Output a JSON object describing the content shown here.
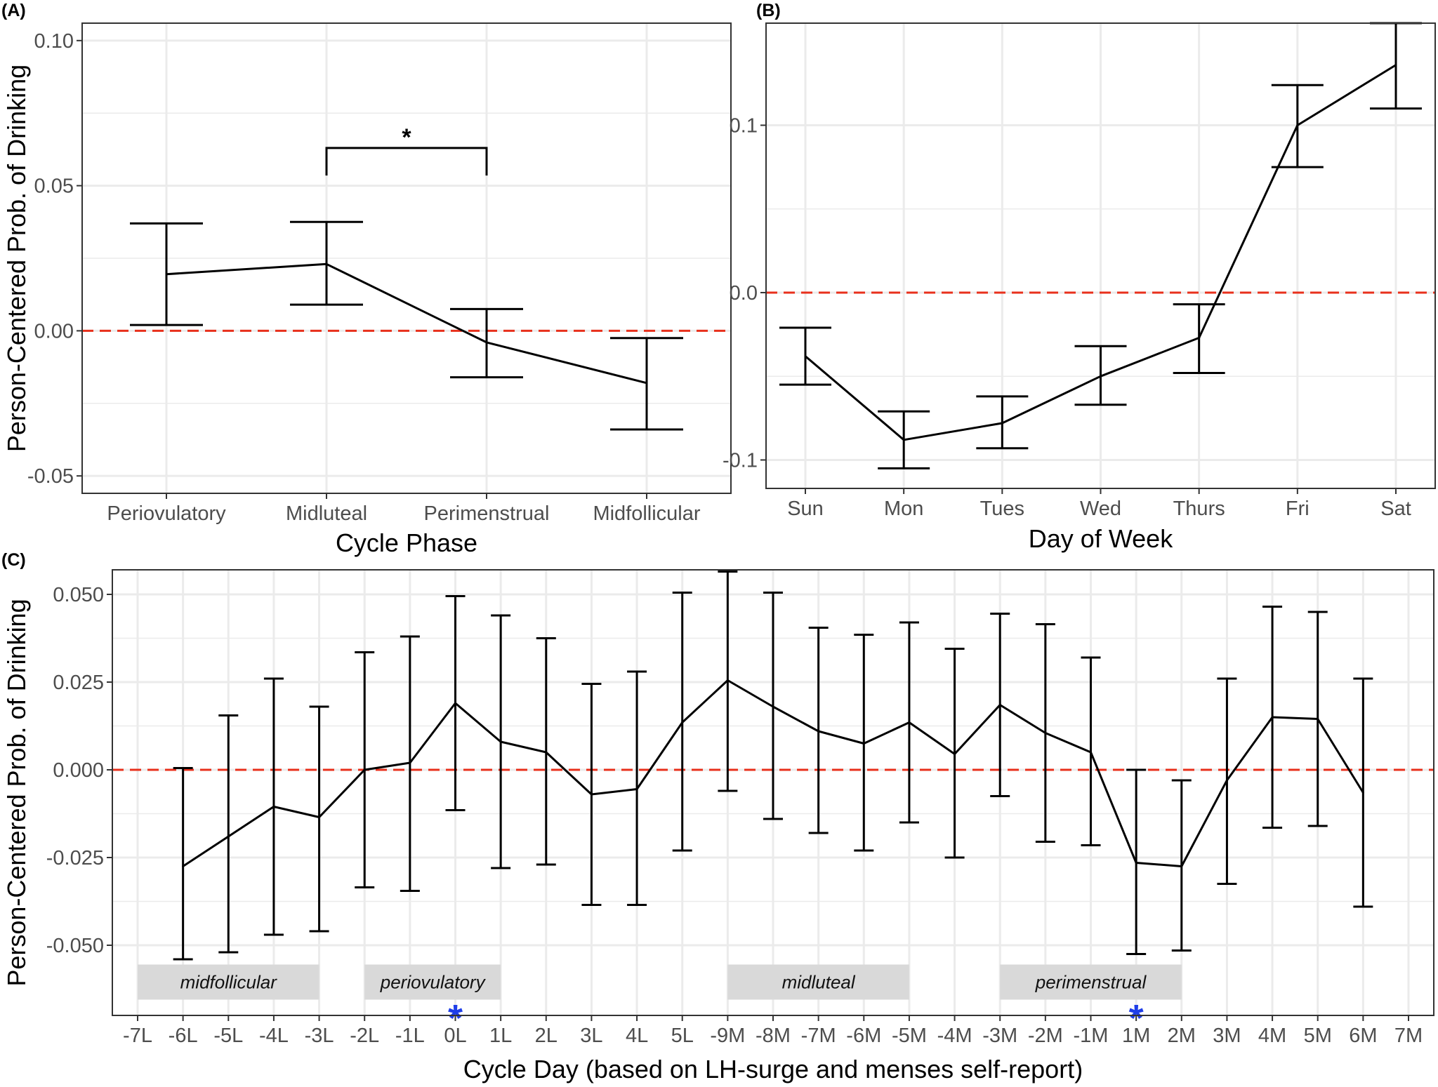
{
  "figure": {
    "reference_line_color": "#e8301c",
    "line_color": "#000000",
    "grid_color": "#ebebeb",
    "band_color": "#d9d9d9",
    "marker_color": "#1f3ee8"
  },
  "chart_data": [
    {
      "id": "A",
      "panel_label": "(A)",
      "type": "line",
      "error_bars": true,
      "xlabel": "Cycle Phase",
      "ylabel": "Person-Centered Prob. of Drinking",
      "ylim": [
        -0.056,
        0.106
      ],
      "yticks": [
        -0.05,
        0.0,
        0.05,
        0.1
      ],
      "ytick_labels": [
        "-0.05",
        "0.00",
        "0.05",
        "0.10"
      ],
      "categories": [
        "Periovulatory",
        "Midluteal",
        "Perimenstrual",
        "Midfollicular"
      ],
      "values": [
        0.0195,
        0.023,
        -0.004,
        -0.018
      ],
      "lower": [
        0.002,
        0.009,
        -0.016,
        -0.034
      ],
      "upper": [
        0.037,
        0.0375,
        0.0075,
        -0.0025
      ],
      "reference_line": 0,
      "grid": true,
      "significance": {
        "from": "Midluteal",
        "to": "Perimenstrual",
        "y": 0.063,
        "drop": 0.0095,
        "label": "*"
      }
    },
    {
      "id": "B",
      "panel_label": "(B)",
      "type": "line",
      "error_bars": true,
      "xlabel": "Day of Week",
      "ylabel": "",
      "ylim": [
        -0.117,
        0.161
      ],
      "yticks": [
        -0.1,
        0.0,
        0.1
      ],
      "ytick_labels": [
        "-0.1",
        "0.0",
        "0.1"
      ],
      "categories": [
        "Sun",
        "Mon",
        "Tues",
        "Wed",
        "Thurs",
        "Fri",
        "Sat"
      ],
      "values": [
        -0.038,
        -0.088,
        -0.078,
        -0.05,
        -0.027,
        0.1,
        0.136
      ],
      "lower": [
        -0.055,
        -0.105,
        -0.093,
        -0.067,
        -0.048,
        0.075,
        0.11
      ],
      "upper": [
        -0.021,
        -0.071,
        -0.062,
        -0.032,
        -0.007,
        0.124,
        0.161
      ],
      "reference_line": 0,
      "grid": true
    },
    {
      "id": "C",
      "panel_label": "(C)",
      "type": "line",
      "error_bars": true,
      "xlabel": "Cycle Day (based on LH-surge and menses self-report)",
      "ylabel": "Person-Centered Prob. of Drinking",
      "ylim": [
        -0.07,
        0.057
      ],
      "yticks": [
        -0.05,
        -0.025,
        0.0,
        0.025,
        0.05
      ],
      "ytick_labels": [
        "-0.050",
        "-0.025",
        "0.000",
        "0.025",
        "0.050"
      ],
      "categories": [
        "-7L",
        "-6L",
        "-5L",
        "-4L",
        "-3L",
        "-2L",
        "-1L",
        "0L",
        "1L",
        "2L",
        "3L",
        "4L",
        "5L",
        "-9M",
        "-8M",
        "-7M",
        "-6M",
        "-5M",
        "-4M",
        "-3M",
        "-2M",
        "-1M",
        "1M",
        "2M",
        "3M",
        "4M",
        "5M",
        "6M",
        "7M"
      ],
      "values": [
        null,
        -0.0275,
        -0.019,
        -0.0105,
        -0.0135,
        0.0,
        0.002,
        0.019,
        0.008,
        0.005,
        -0.007,
        -0.0055,
        0.0135,
        0.0255,
        0.018,
        0.011,
        0.0075,
        0.0135,
        0.0045,
        0.0185,
        0.0105,
        0.005,
        -0.0265,
        -0.0275,
        -0.003,
        0.015,
        0.0145,
        -0.0065,
        null
      ],
      "lower": [
        null,
        -0.054,
        -0.052,
        -0.047,
        -0.046,
        -0.0335,
        -0.0345,
        -0.0115,
        -0.028,
        -0.027,
        -0.0385,
        -0.0385,
        -0.023,
        -0.006,
        -0.014,
        -0.018,
        -0.023,
        -0.015,
        -0.025,
        -0.0075,
        -0.0205,
        -0.0215,
        -0.0525,
        -0.0515,
        -0.0325,
        -0.0165,
        -0.016,
        -0.039,
        null
      ],
      "upper": [
        null,
        0.0005,
        0.0155,
        0.026,
        0.018,
        0.0335,
        0.038,
        0.0495,
        0.044,
        0.0375,
        0.0245,
        0.028,
        0.0505,
        0.0565,
        0.0505,
        0.0405,
        0.0385,
        0.042,
        0.0345,
        0.0445,
        0.0415,
        0.032,
        0.0,
        -0.003,
        0.026,
        0.0465,
        0.045,
        0.026,
        null
      ],
      "reference_line": 0,
      "grid": true,
      "phase_bands": [
        {
          "label": "midfollicular",
          "from": "-7L",
          "to": "-3L"
        },
        {
          "label": "periovulatory",
          "from": "-2L",
          "to": "1L"
        },
        {
          "label": "midluteal",
          "from": "-9M",
          "to": "-5M"
        },
        {
          "label": "perimenstrual",
          "from": "-3M",
          "to": "2M"
        }
      ],
      "markers": [
        {
          "at": "0L",
          "label": "*"
        },
        {
          "at": "1M",
          "label": "*"
        }
      ]
    }
  ]
}
